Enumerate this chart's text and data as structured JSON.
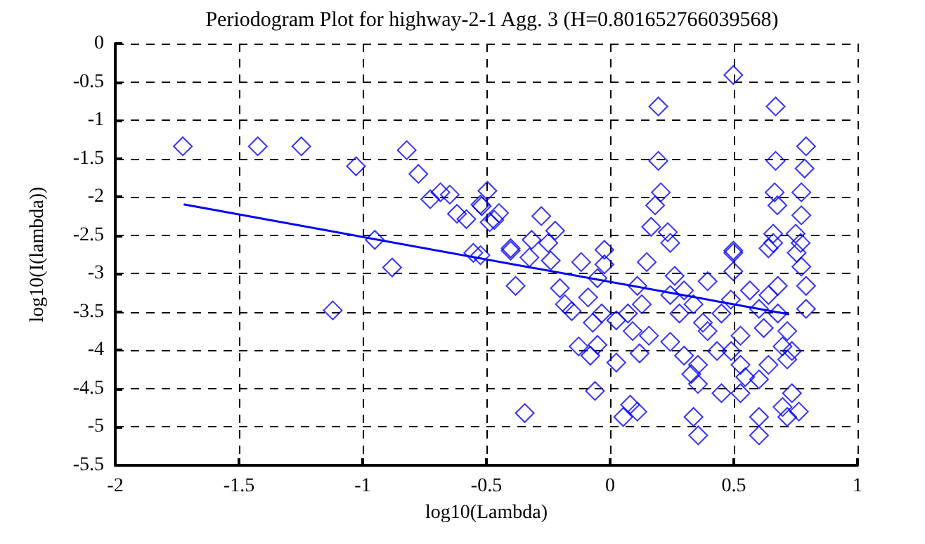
{
  "chart_data": {
    "type": "scatter",
    "title": "Periodogram Plot for highway-2-1 Agg. 3 (H=0.801652766039568)",
    "xlabel": "log10(Lambda)",
    "ylabel": "log10(I(lambda))",
    "xlim": [
      -2,
      1
    ],
    "xticks": [
      -2,
      -1.5,
      -1,
      -0.5,
      0,
      0.5,
      1
    ],
    "ylim": [
      -5.5,
      0
    ],
    "yticks": [
      -5.5,
      -5,
      -4.5,
      -4,
      -3.5,
      -3,
      -2.5,
      -2,
      -1.5,
      -1,
      -0.5,
      0
    ],
    "grid": true,
    "marker": "diamond",
    "series": [
      {
        "color": "#0000ff",
        "x": [
          -1.727,
          -1.424,
          -1.248,
          -1.027,
          -0.822,
          -0.775,
          -0.727,
          -0.686,
          -0.648,
          -0.619,
          -0.581,
          -0.524,
          -0.496,
          -0.487,
          -0.951,
          -0.881,
          -1.121,
          -0.553,
          0.498,
          0.195,
          0.669,
          0.195,
          0.669,
          0.792,
          0.786,
          0.205,
          0.182,
          0.665,
          0.676,
          0.773,
          0.773,
          -0.519,
          -0.449,
          -0.468,
          -0.278,
          -0.222,
          -0.317,
          -0.25,
          -0.402,
          -0.023,
          0.166,
          0.233,
          0.243,
          0.498,
          0.659,
          0.659,
          0.75,
          0.77,
          -0.524,
          -0.402,
          -0.326,
          -0.24,
          -0.382,
          -0.203,
          -0.117,
          -0.023,
          -0.051,
          -0.183,
          -0.155,
          -0.089,
          -0.07,
          -0.034,
          0.025,
          0.072,
          0.128,
          0.148,
          0.11,
          0.157,
          0.091,
          -0.127,
          -0.051,
          -0.08,
          0.025,
          0.119,
          -0.061,
          -0.345,
          0.053,
          0.081,
          0.11,
          0.243,
          0.261,
          0.299,
          0.337,
          0.394,
          0.375,
          0.328,
          0.355,
          0.337,
          0.356,
          0.45,
          0.498,
          0.498,
          0.488,
          0.45,
          0.432,
          0.489,
          0.527,
          0.546,
          0.527,
          0.602,
          0.602,
          0.565,
          0.602,
          0.64,
          0.621,
          0.678,
          0.697,
          0.735,
          0.716,
          0.64,
          0.602,
          0.735,
          0.697,
          0.716,
          0.763,
          0.792,
          0.773,
          0.754,
          0.64,
          0.678,
          0.527,
          0.716,
          0.394,
          0.299,
          0.355,
          0.243,
          0.28,
          0.792
        ],
        "values": [
          -1.34,
          -1.34,
          -1.34,
          -1.6,
          -1.39,
          -1.7,
          -2.03,
          -1.94,
          -1.97,
          -2.22,
          -2.29,
          -2.1,
          -1.92,
          -2.33,
          -2.56,
          -2.92,
          -3.48,
          -2.73,
          -0.41,
          -0.82,
          -0.82,
          -1.53,
          -1.53,
          -1.34,
          -1.63,
          -1.94,
          -2.11,
          -1.94,
          -2.11,
          -1.94,
          -2.24,
          -2.12,
          -2.21,
          -2.3,
          -2.25,
          -2.44,
          -2.56,
          -2.6,
          -2.67,
          -2.69,
          -2.39,
          -2.46,
          -2.6,
          -2.7,
          -2.48,
          -2.6,
          -2.48,
          -2.6,
          -2.76,
          -2.7,
          -2.79,
          -2.83,
          -3.16,
          -3.19,
          -2.85,
          -2.88,
          -3.06,
          -3.4,
          -3.49,
          -3.31,
          -3.64,
          -3.52,
          -3.61,
          -3.52,
          -3.4,
          -2.85,
          -3.16,
          -3.81,
          -3.75,
          -3.95,
          -3.93,
          -4.07,
          -4.16,
          -4.04,
          -4.53,
          -4.82,
          -4.87,
          -4.71,
          -4.8,
          -3.89,
          -3.03,
          -3.22,
          -3.4,
          -3.1,
          -3.64,
          -4.31,
          -4.44,
          -4.87,
          -5.11,
          -4.56,
          -2.73,
          -2.97,
          -3.34,
          -3.52,
          -4.01,
          -4.01,
          -4.19,
          -4.35,
          -4.56,
          -4.87,
          -5.11,
          -3.22,
          -3.46,
          -3.28,
          -3.71,
          -3.52,
          -3.95,
          -4.01,
          -4.12,
          -4.19,
          -4.38,
          -4.56,
          -4.74,
          -4.87,
          -4.8,
          -3.46,
          -2.91,
          -2.73,
          -2.67,
          -3.16,
          -3.81,
          -3.75,
          -3.75,
          -4.07,
          -4.19,
          -3.28,
          -3.52,
          -3.16
        ]
      },
      {
        "type": "line",
        "color": "#0000ff",
        "line_style": "solid",
        "marker": "none",
        "x": [
          -1.72,
          0.72
        ],
        "values": [
          -2.1,
          -3.53
        ]
      }
    ]
  }
}
